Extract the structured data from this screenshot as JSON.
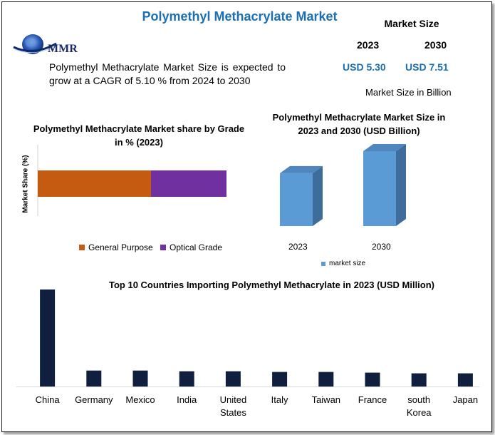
{
  "header": {
    "title": "Polymethyl Methacrylate Market",
    "logo_text": "MMR",
    "intro": "Polymethyl Methacrylate Market Size is expected to grow at a CAGR of 5.10 % from 2024 to 2030"
  },
  "market_size": {
    "title": "Market Size",
    "year_start": "2023",
    "year_end": "2030",
    "value_start": "USD 5.30",
    "value_end": "USD 7.51",
    "unit": "Market Size in Billion"
  },
  "colors": {
    "title_blue": "#1b6fb3",
    "general_purpose": "#c55a11",
    "optical_grade": "#7030a0",
    "size_bar": "#5b9bd5",
    "import_bar": "#0f1f3d"
  },
  "chart_data": [
    {
      "type": "bar",
      "orientation": "horizontal-stacked",
      "title": "Polymethyl Methacrylate Market share by Grade in % (2023)",
      "ylabel": "Market Share (%)",
      "legend_position": "bottom",
      "series": [
        {
          "name": "General Purpose",
          "values": [
            60
          ]
        },
        {
          "name": "Optical Grade",
          "values": [
            40
          ]
        }
      ],
      "xlim": [
        0,
        100
      ]
    },
    {
      "type": "bar",
      "style": "3d",
      "title": "Polymethyl Methacrylate Market Size in 2023 and 2030 (USD Billion)",
      "categories": [
        "2023",
        "2030"
      ],
      "series": [
        {
          "name": "market size",
          "values": [
            5.3,
            7.51
          ]
        }
      ],
      "legend_position": "bottom",
      "ylim": [
        0,
        8
      ]
    },
    {
      "type": "bar",
      "title": "Top 10 Countries Importing Polymethyl Methacrylate in 2023 (USD Million)",
      "categories": [
        "China",
        "Germany",
        "Mexico",
        "India",
        "United States",
        "Italy",
        "Taiwan",
        "France",
        "south Korea",
        "Japan"
      ],
      "values": [
        1400,
        230,
        230,
        220,
        220,
        210,
        210,
        200,
        190,
        190
      ],
      "ylim": [
        0,
        1420
      ]
    }
  ]
}
